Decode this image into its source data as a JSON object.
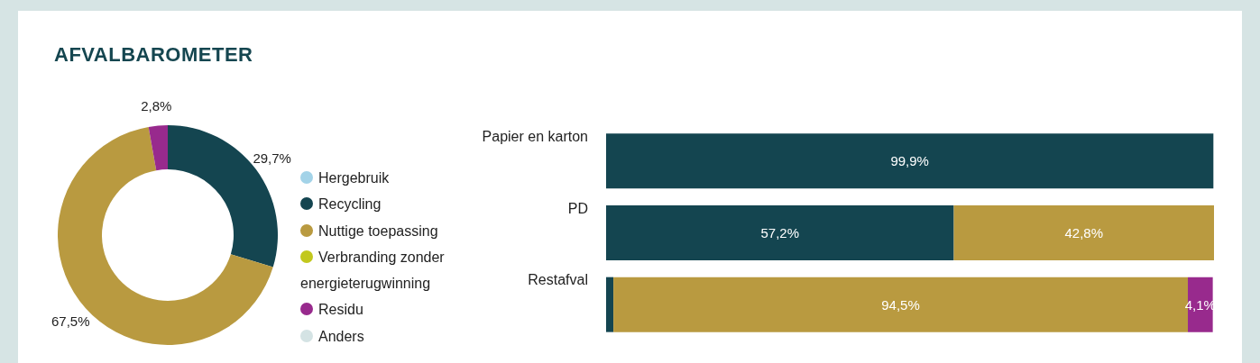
{
  "chart_data": [
    {
      "type": "donut",
      "title": "AFVALBAROMETER",
      "categories": [
        "Hergebruik",
        "Recycling",
        "Nuttige toepassing",
        "Verbranding zonder energieterugwinning",
        "Residu",
        "Anders"
      ],
      "values": [
        0,
        29.7,
        67.5,
        0,
        2.8,
        0
      ],
      "value_labels": [
        null,
        "29,7%",
        "67,5%",
        null,
        "2,8%",
        null
      ],
      "colors": [
        "#a3d3e8",
        "#144550",
        "#b99a40",
        "#c2c81e",
        "#982a8d",
        "#d4e3e4"
      ],
      "legend": "right"
    },
    {
      "type": "bar",
      "orientation": "horizontal",
      "stacked": true,
      "categories": [
        "Papier en karton",
        "PD",
        "Restafval"
      ],
      "xlim": [
        0,
        100
      ],
      "tick_labels": "y",
      "series": [
        {
          "color": "#144550",
          "values": [
            99.9,
            57.2,
            1.2
          ],
          "value_labels": [
            "99,9%",
            "57,2%",
            null
          ]
        },
        {
          "color": "#b99a40",
          "values": [
            null,
            42.8,
            94.5
          ],
          "value_labels": [
            null,
            "42,8%",
            "94,5%"
          ]
        },
        {
          "color": "#982a8d",
          "values": [
            null,
            null,
            4.1
          ],
          "value_labels": [
            null,
            null,
            "4,1%"
          ]
        }
      ]
    }
  ]
}
